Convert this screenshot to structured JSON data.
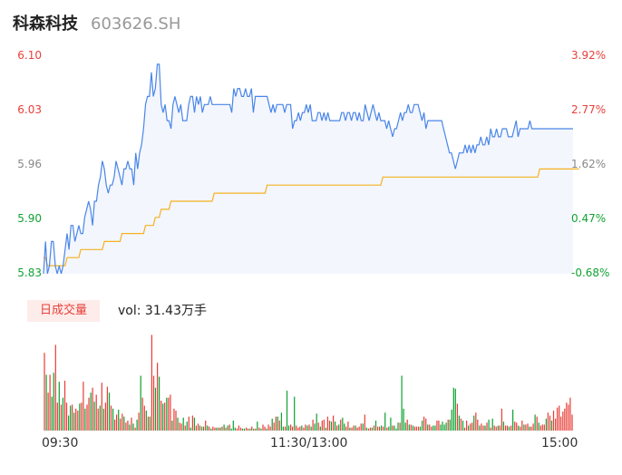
{
  "stock": {
    "name": "科森科技",
    "code": "603626.SH"
  },
  "price_axis": {
    "left_labels": [
      "6.10",
      "6.03",
      "5.96",
      "5.90",
      "5.83"
    ],
    "right_labels": [
      "3.92%",
      "2.77%",
      "1.62%",
      "0.47%",
      "-0.68%"
    ],
    "label_colors": [
      "#e8403a",
      "#e8403a",
      "#888888",
      "#12a334",
      "#12a334"
    ]
  },
  "volume_panel": {
    "badge": "日成交量",
    "summary": "vol: 31.43万手"
  },
  "time_axis": [
    "09:30",
    "11:30/13:00",
    "15:00"
  ],
  "colors": {
    "price_line": "#4a86e8",
    "avg_line": "#f5b120",
    "up": "#e8403a",
    "down": "#12a334"
  },
  "chart_data": {
    "type": "line",
    "title": "",
    "ylim": [
      5.83,
      6.1
    ],
    "ylim_pct": [
      -0.68,
      3.92
    ],
    "x_ticks": [
      "09:30",
      "11:30/13:00",
      "15:00"
    ],
    "series": [
      {
        "values": [
          5.83,
          5.87,
          5.83,
          5.84,
          5.87,
          5.87,
          5.84,
          5.83,
          5.84,
          5.83,
          5.84,
          5.86,
          5.88,
          5.86,
          5.89,
          5.89,
          5.87,
          5.88,
          5.89,
          5.88,
          5.88,
          5.9,
          5.91,
          5.92,
          5.91,
          5.89,
          5.92,
          5.92,
          5.94,
          5.95,
          5.97,
          5.96,
          5.94,
          5.93,
          5.94,
          5.94,
          5.95,
          5.97,
          5.96,
          5.95,
          5.94,
          5.96,
          5.96,
          5.97,
          5.96,
          5.96,
          5.94,
          5.98,
          5.96,
          5.98,
          5.99,
          6.01,
          6.04,
          6.05,
          6.05,
          6.08,
          6.05,
          6.06,
          6.09,
          6.09,
          6.04,
          6.03,
          6.04,
          6.02,
          6.02,
          6.01,
          6.04,
          6.05,
          6.04,
          6.03,
          6.04,
          6.02,
          6.02,
          6.02,
          6.04,
          6.05,
          6.05,
          6.03,
          6.05,
          6.04,
          6.05,
          6.03,
          6.04,
          6.04,
          6.04,
          6.05,
          6.04,
          6.04,
          6.04,
          6.04,
          6.04,
          6.04,
          6.04,
          6.04,
          6.04,
          6.04,
          6.03,
          6.06,
          6.05,
          6.06,
          6.06,
          6.05,
          6.05,
          6.06,
          6.05,
          6.05,
          6.06,
          6.03,
          6.05,
          6.05,
          6.05,
          6.05,
          6.05,
          6.05,
          6.05,
          6.04,
          6.03,
          6.04,
          6.03,
          6.04,
          6.04,
          6.04,
          6.04,
          6.03,
          6.04,
          6.04,
          6.04,
          6.01,
          6.02,
          6.02,
          6.03,
          6.02,
          6.03,
          6.03,
          6.04,
          6.03,
          6.04,
          6.02,
          6.02,
          6.02,
          6.03,
          6.03,
          6.02,
          6.03,
          6.02,
          6.03,
          6.02,
          6.02,
          6.02,
          6.02,
          6.02,
          6.02,
          6.03,
          6.03,
          6.02,
          6.03,
          6.03,
          6.02,
          6.03,
          6.03,
          6.02,
          6.03,
          6.02,
          6.02,
          6.04,
          6.03,
          6.02,
          6.03,
          6.04,
          6.03,
          6.02,
          6.03,
          6.02,
          6.02,
          6.02,
          6.01,
          6.02,
          6.01,
          6.0,
          6.01,
          6.01,
          6.02,
          6.03,
          6.02,
          6.03,
          6.03,
          6.04,
          6.03,
          6.03,
          6.04,
          6.04,
          6.04,
          6.03,
          6.02,
          6.03,
          6.01,
          6.02,
          6.02,
          6.02,
          6.02,
          6.02,
          6.02,
          6.02,
          6.02,
          6.01,
          6.0,
          5.99,
          5.98,
          5.98,
          5.97,
          5.96,
          5.97,
          5.98,
          5.98,
          5.98,
          5.99,
          5.98,
          5.99,
          5.98,
          5.99,
          5.98,
          5.99,
          5.99,
          6.0,
          5.99,
          5.99,
          6.0,
          5.99,
          6.01,
          6.0,
          6.0,
          6.01,
          6.0,
          6.0,
          6.01,
          6.01,
          6.01,
          6.0,
          6.0,
          6.0,
          6.01,
          6.02,
          6.0,
          6.01,
          6.01,
          6.01,
          6.01,
          6.01,
          6.02,
          6.01,
          6.01,
          6.01,
          6.01,
          6.01,
          6.01,
          6.01,
          6.01,
          6.01,
          6.01,
          6.01,
          6.01,
          6.01,
          6.01,
          6.01,
          6.01,
          6.01,
          6.01,
          6.01,
          6.01,
          6.01,
          6.01
        ]
      },
      {
        "values": [
          5.85,
          5.85,
          5.84,
          5.84,
          5.84,
          5.84,
          5.84,
          5.84,
          5.84,
          5.84,
          5.84,
          5.84,
          5.85,
          5.85,
          5.85,
          5.85,
          5.85,
          5.85,
          5.85,
          5.86,
          5.86,
          5.86,
          5.86,
          5.86,
          5.86,
          5.86,
          5.86,
          5.86,
          5.86,
          5.86,
          5.86,
          5.87,
          5.87,
          5.87,
          5.87,
          5.87,
          5.87,
          5.87,
          5.87,
          5.87,
          5.88,
          5.88,
          5.88,
          5.88,
          5.88,
          5.88,
          5.88,
          5.88,
          5.88,
          5.88,
          5.88,
          5.88,
          5.89,
          5.89,
          5.89,
          5.89,
          5.89,
          5.9,
          5.9,
          5.9,
          5.91,
          5.91,
          5.91,
          5.91,
          5.91,
          5.92,
          5.92,
          5.92,
          5.92,
          5.92,
          5.92,
          5.92,
          5.92,
          5.92,
          5.92,
          5.92,
          5.92,
          5.92,
          5.92,
          5.92,
          5.92,
          5.92,
          5.92,
          5.92,
          5.92,
          5.92,
          5.92,
          5.93,
          5.93,
          5.93,
          5.93,
          5.93,
          5.93,
          5.93,
          5.93,
          5.93,
          5.93,
          5.93,
          5.93,
          5.93,
          5.93,
          5.93,
          5.93,
          5.93,
          5.93,
          5.93,
          5.93,
          5.93,
          5.93,
          5.93,
          5.93,
          5.93,
          5.93,
          5.93,
          5.94,
          5.94,
          5.94,
          5.94,
          5.94,
          5.94,
          5.94,
          5.94,
          5.94,
          5.94,
          5.94,
          5.94,
          5.94,
          5.94,
          5.94,
          5.94,
          5.94,
          5.94,
          5.94,
          5.94,
          5.94,
          5.94,
          5.94,
          5.94,
          5.94,
          5.94,
          5.94,
          5.94,
          5.94,
          5.94,
          5.94,
          5.94,
          5.94,
          5.94,
          5.94,
          5.94,
          5.94,
          5.94,
          5.94,
          5.94,
          5.94,
          5.94,
          5.94,
          5.94,
          5.94,
          5.94,
          5.94,
          5.94,
          5.94,
          5.94,
          5.94,
          5.94,
          5.94,
          5.94,
          5.94,
          5.94,
          5.94,
          5.94,
          5.94,
          5.95,
          5.95,
          5.95,
          5.95,
          5.95,
          5.95,
          5.95,
          5.95,
          5.95,
          5.95,
          5.95,
          5.95,
          5.95,
          5.95,
          5.95,
          5.95,
          5.95,
          5.95,
          5.95,
          5.95,
          5.95,
          5.95,
          5.95,
          5.95,
          5.95,
          5.95,
          5.95,
          5.95,
          5.95,
          5.95,
          5.95,
          5.95,
          5.95,
          5.95,
          5.95,
          5.95,
          5.95,
          5.95,
          5.95,
          5.95,
          5.95,
          5.95,
          5.95,
          5.95,
          5.95,
          5.95,
          5.95,
          5.95,
          5.95,
          5.95,
          5.95,
          5.95,
          5.95,
          5.95,
          5.95,
          5.95,
          5.95,
          5.95,
          5.95,
          5.95,
          5.95,
          5.95,
          5.95,
          5.95,
          5.95,
          5.95,
          5.95,
          5.95,
          5.95,
          5.95,
          5.95,
          5.95,
          5.95,
          5.95,
          5.95,
          5.95,
          5.95,
          5.95,
          5.95,
          5.95,
          5.96,
          5.96,
          5.96,
          5.96,
          5.96,
          5.96,
          5.96,
          5.96,
          5.96,
          5.96,
          5.96,
          5.96,
          5.96,
          5.96,
          5.96,
          5.96,
          5.96,
          5.96,
          5.96,
          5.96,
          5.96
        ]
      }
    ],
    "volume": {
      "values": [
        0.78,
        0.56,
        0.38,
        0.56,
        0.34,
        0.58,
        0.86,
        0.28,
        0.49,
        0.26,
        0.33,
        0.5,
        0.28,
        0.15,
        0.25,
        0.26,
        0.18,
        0.22,
        0.2,
        0.27,
        0.28,
        0.49,
        0.22,
        0.26,
        0.33,
        0.38,
        0.43,
        0.29,
        0.36,
        0.22,
        0.25,
        0.48,
        0.22,
        0.28,
        0.44,
        0.38,
        0.25,
        0.22,
        0.11,
        0.16,
        0.21,
        0.12,
        0.17,
        0.14,
        0.08,
        0.1,
        0.06,
        0.13,
        0.07,
        0.03,
        0.11,
        0.18,
        0.55,
        0.33,
        0.25,
        0.2,
        0.14,
        0.14,
        0.96,
        0.55,
        0.43,
        0.68,
        0.54,
        0.3,
        0.27,
        0.28,
        0.33,
        0.33,
        0.36,
        0.1,
        0.22,
        0.2,
        0.13,
        0.08,
        0.07,
        0.13,
        0.05,
        0.09,
        0.14,
        0.03,
        0.15,
        0.13,
        0.05,
        0.07,
        0.05,
        0.04,
        0.04,
        0.1,
        0.05,
        0.04,
        0.02,
        0.04,
        0.03,
        0.03,
        0.03,
        0.03,
        0.04,
        0.06,
        0.03,
        0.05,
        0.06,
        0.02,
        0.1,
        0.03,
        0.02,
        0.05,
        0.03,
        0.02,
        0.02,
        0.03,
        0.02,
        0.02,
        0.04,
        0.02,
        0.02,
        0.09,
        0.03,
        0.02,
        0.06,
        0.04,
        0.02,
        0.06,
        0.04,
        0.12,
        0.08,
        0.14,
        0.14,
        0.1,
        0.18,
        0.04,
        0.04,
        0.4,
        0.05,
        0.06,
        0.04,
        0.34,
        0.05,
        0.03,
        0.04,
        0.05,
        0.03,
        0.06,
        0.05,
        0.06,
        0.04,
        0.11,
        0.07,
        0.17,
        0.08,
        0.04,
        0.1,
        0.11,
        0.03,
        0.14,
        0.1,
        0.09,
        0.15,
        0.09,
        0.05,
        0.06,
        0.11,
        0.13,
        0.07,
        0.04,
        0.09,
        0.03,
        0.03,
        0.05,
        0.05,
        0.03,
        0.04,
        0.07,
        0.07,
        0.16,
        0.03,
        0.02,
        0.03,
        0.03,
        0.05,
        0.1,
        0.04,
        0.04,
        0.05,
        0.04,
        0.18,
        0.03,
        0.04,
        0.13,
        0.05,
        0.05,
        0.02,
        0.08,
        0.08,
        0.55,
        0.22,
        0.08,
        0.11,
        0.06,
        0.06,
        0.05,
        0.04,
        0.04,
        0.04,
        0.04,
        0.1,
        0.14,
        0.12,
        0.06,
        0.06,
        0.04,
        0.05,
        0.05,
        0.1,
        0.1,
        0.06,
        0.09,
        0.06,
        0.08,
        0.11,
        0.11,
        0.21,
        0.43,
        0.42,
        0.27,
        0.15,
        0.12,
        0.1,
        0.03,
        0.1,
        0.05,
        0.07,
        0.08,
        0.15,
        0.18,
        0.11,
        0.05,
        0.07,
        0.05,
        0.05,
        0.08,
        0.11,
        0.03,
        0.12,
        0.05,
        0.04,
        0.05,
        0.05,
        0.22,
        0.09,
        0.05,
        0.05,
        0.04,
        0.05,
        0.21,
        0.09,
        0.08,
        0.05,
        0.04,
        0.1,
        0.06,
        0.06,
        0.07,
        0.04,
        0.04,
        0.07,
        0.16,
        0.14,
        0.08,
        0.05,
        0.06,
        0.06,
        0.12,
        0.18,
        0.15,
        0.1,
        0.2,
        0.12,
        0.23,
        0.25,
        0.14,
        0.19,
        0.22,
        0.28,
        0.26,
        0.33,
        0.16
      ],
      "directions": [
        "u",
        "d",
        "u",
        "u",
        "d",
        "d",
        "u",
        "u",
        "d",
        "u",
        "d",
        "u",
        "u",
        "d",
        "d",
        "u",
        "d",
        "u",
        "u",
        "d",
        "u",
        "u",
        "d",
        "u",
        "u",
        "d",
        "u",
        "d",
        "u",
        "u",
        "d",
        "u",
        "d",
        "u",
        "u",
        "d",
        "u",
        "d",
        "u",
        "u",
        "d",
        "u",
        "u",
        "d",
        "u",
        "u",
        "d",
        "u",
        "d",
        "u",
        "d",
        "u",
        "d",
        "u",
        "u",
        "d",
        "u",
        "d",
        "u",
        "u",
        "d",
        "u",
        "d",
        "u",
        "d",
        "u",
        "d",
        "u",
        "u",
        "d",
        "u",
        "u",
        "d",
        "u",
        "u",
        "d",
        "u",
        "d",
        "u",
        "d",
        "u",
        "d",
        "u",
        "u",
        "d",
        "u",
        "d",
        "u",
        "d",
        "u",
        "d",
        "u",
        "u",
        "d",
        "u",
        "d",
        "u",
        "d",
        "u",
        "d",
        "u",
        "d",
        "d",
        "d",
        "u",
        "u",
        "u",
        "d",
        "d",
        "u",
        "u",
        "d",
        "u",
        "d",
        "u",
        "d",
        "u",
        "d",
        "u",
        "u",
        "d",
        "u",
        "u",
        "d",
        "u",
        "u",
        "d",
        "u",
        "d",
        "d",
        "u",
        "d",
        "d",
        "u",
        "u",
        "d",
        "u",
        "u",
        "u",
        "d",
        "u",
        "u",
        "d",
        "u",
        "d",
        "u",
        "d",
        "d",
        "u",
        "d",
        "u",
        "u",
        "d",
        "u",
        "u",
        "d",
        "u",
        "d",
        "u",
        "d",
        "u",
        "d",
        "d",
        "u",
        "u",
        "d",
        "u",
        "u",
        "d",
        "u",
        "u",
        "u",
        "d",
        "u",
        "d",
        "u",
        "u",
        "d",
        "u",
        "d",
        "u",
        "u",
        "d",
        "u",
        "d",
        "u",
        "d",
        "d",
        "u",
        "d",
        "d",
        "d",
        "u",
        "d",
        "d",
        "d",
        "u",
        "d",
        "u",
        "d",
        "u",
        "u",
        "u",
        "d",
        "d",
        "u",
        "u",
        "d",
        "u",
        "u",
        "d",
        "d",
        "u",
        "u",
        "d",
        "d",
        "d",
        "d",
        "u",
        "d",
        "d",
        "d",
        "d",
        "u",
        "d",
        "u",
        "d",
        "u",
        "u",
        "d",
        "u",
        "u",
        "d",
        "u",
        "u",
        "d",
        "u",
        "u",
        "d",
        "u",
        "d",
        "u",
        "d",
        "u",
        "u",
        "d",
        "u",
        "u",
        "d",
        "u",
        "u",
        "d",
        "u",
        "d",
        "u",
        "u",
        "d",
        "u",
        "u",
        "d",
        "u",
        "u",
        "d",
        "u",
        "u",
        "d",
        "u",
        "d",
        "u",
        "u",
        "u",
        "d",
        "u",
        "u",
        "d",
        "u",
        "u",
        "u"
      ]
    }
  }
}
